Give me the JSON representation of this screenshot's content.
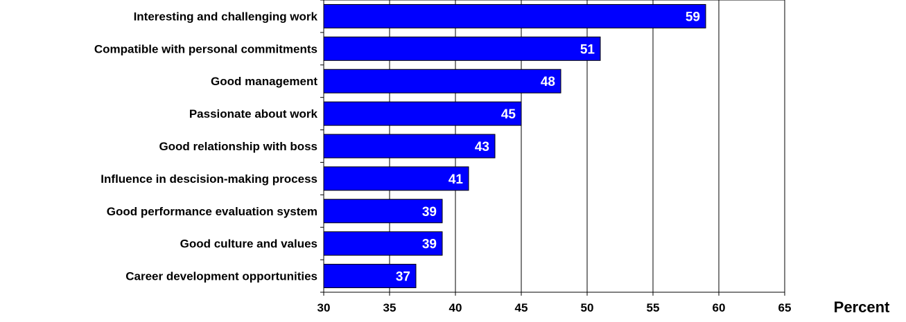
{
  "chart_data": {
    "type": "bar",
    "orientation": "horizontal",
    "title": "",
    "xlabel": "Percent",
    "ylabel": "",
    "categories": [
      "Interesting and challenging work",
      "Compatible with personal commitments",
      "Good management",
      "Passionate about work",
      "Good relationship with boss",
      "Influence in descision-making process",
      "Good performance evaluation system",
      "Good culture and values",
      "Career development opportunities"
    ],
    "values": [
      59,
      51,
      48,
      45,
      43,
      41,
      39,
      39,
      37
    ],
    "xlim": [
      30,
      65
    ],
    "x_ticks": [
      30,
      35,
      40,
      45,
      50,
      55,
      60,
      65
    ],
    "grid": "vertical",
    "legend": "none",
    "colors": {
      "bar_fill": "#0000ff",
      "bar_stroke": "#000000",
      "data_label": "#ffffff",
      "text": "#000000",
      "grid": "#000000",
      "background": "#ffffff"
    }
  }
}
